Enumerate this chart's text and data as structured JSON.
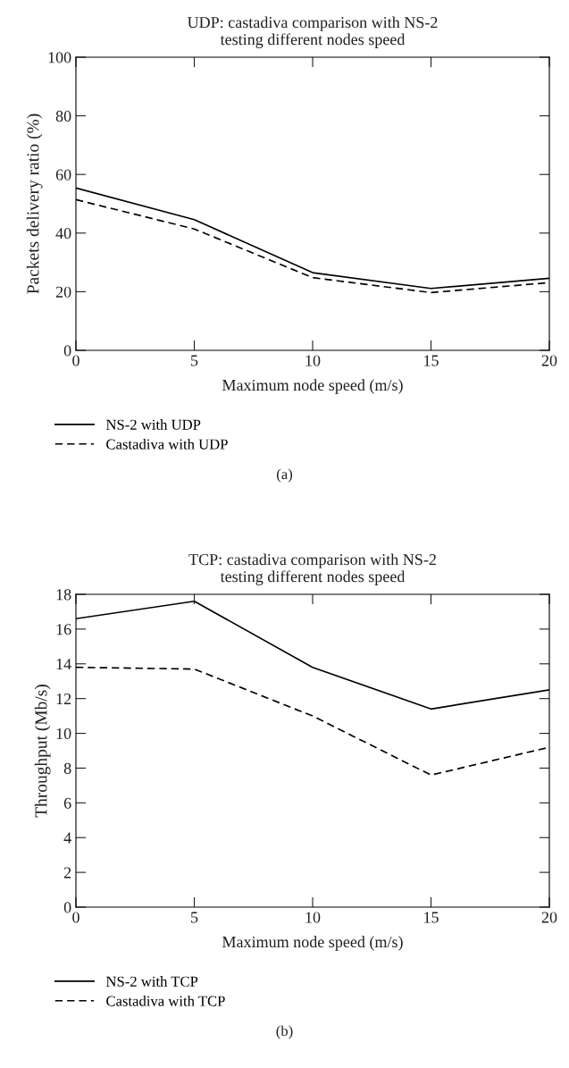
{
  "chart_data": [
    {
      "type": "line",
      "title": "UDP: castadiva comparison with NS-2\ntesting different nodes speed",
      "xlabel": "Maximum node speed (m/s)",
      "ylabel": "Packets delivery ratio (%)",
      "x": [
        0,
        5,
        10,
        15,
        20
      ],
      "xlim": [
        0,
        20
      ],
      "xticks": [
        0,
        5,
        10,
        15,
        20
      ],
      "ylim": [
        0,
        100
      ],
      "yticks": [
        0,
        20,
        40,
        60,
        80,
        100
      ],
      "grid": false,
      "legend": "bottom left",
      "annotations": [
        "(a)"
      ],
      "series": [
        {
          "name": "NS-2 with UDP",
          "color": "#000000",
          "line_style": "solid",
          "values": [
            55.4,
            44.6,
            26.5,
            21.1,
            24.6
          ]
        },
        {
          "name": "Castadiva with UDP",
          "color": "#000000",
          "line_style": "dashed",
          "values": [
            51.4,
            41.4,
            24.8,
            19.7,
            23.1
          ]
        }
      ]
    },
    {
      "type": "line",
      "title": "TCP: castadiva comparison with NS-2\ntesting different nodes speed",
      "xlabel": "Maximum node speed (m/s)",
      "ylabel": "Throughput (Mb/s)",
      "x": [
        0,
        5,
        10,
        15,
        20
      ],
      "xlim": [
        0,
        20
      ],
      "xticks": [
        0,
        5,
        10,
        15,
        20
      ],
      "ylim": [
        0,
        18
      ],
      "yticks": [
        0,
        2,
        4,
        6,
        8,
        10,
        12,
        14,
        16,
        18
      ],
      "grid": false,
      "legend": "bottom left",
      "annotations": [
        "(b)"
      ],
      "series": [
        {
          "name": "NS-2 with TCP",
          "color": "#000000",
          "line_style": "solid",
          "values": [
            16.6,
            17.6,
            13.8,
            11.4,
            12.5
          ]
        },
        {
          "name": "Castadiva with TCP",
          "color": "#000000",
          "line_style": "dashed",
          "values": [
            13.8,
            13.7,
            11.0,
            7.6,
            9.2
          ]
        }
      ]
    }
  ]
}
